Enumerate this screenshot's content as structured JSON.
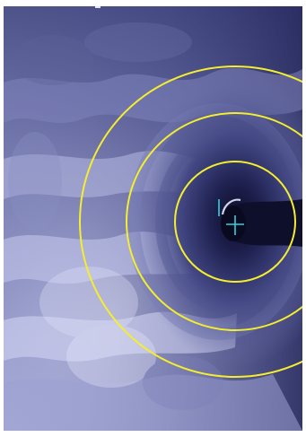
{
  "image": {
    "description_name": "ultrasound-scan-view",
    "colors": {
      "background": "#ffffff",
      "tissue_light": "#d2d6f4",
      "tissue_mid": "#9da1d1",
      "tissue_dark": "#5c6198",
      "shadow": "#151636",
      "ring": "#f5ee2f",
      "marker": "#33d0df"
    },
    "overlays": {
      "ring_count": 3,
      "center_marker": "crosshair",
      "side_marker": "vertical-tick"
    }
  }
}
